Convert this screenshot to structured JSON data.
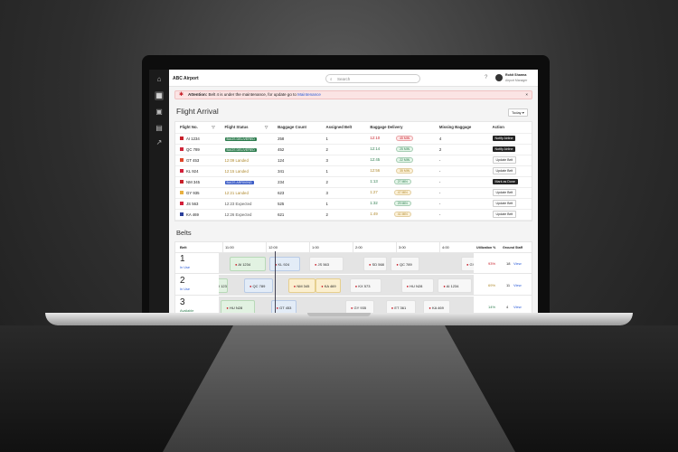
{
  "app": {
    "title": "ABC Airport",
    "search_placeholder": "Search",
    "user_name": "Rohit Sharma",
    "user_role": "Airport Manager"
  },
  "alert": {
    "label": "Attention:",
    "text": "Belt 4 is under the maintenance, for update go to",
    "link": "Maintenance",
    "close": "×"
  },
  "flight_arrival": {
    "title": "Flight Arrival",
    "filter": "Today ▾",
    "columns": [
      "Flight No.",
      "Flight Status",
      "Baggage Count",
      "Assigned Belt",
      "Baggage Delivery",
      "Missing Baggage",
      "Action"
    ],
    "rows": [
      {
        "flight": "AI 1234",
        "logo_color": "#c8202a",
        "status": "BAGS DELIVERED",
        "status_type": "delivered",
        "count": "258",
        "belt": "1",
        "delivery": "12:10",
        "delivery_color": "#c8202a",
        "eta": "45 MIN",
        "eta_type": "red",
        "missing": "4",
        "action": "Notify Airline",
        "action_style": "dark"
      },
      {
        "flight": "QC 789",
        "logo_color": "#d0263a",
        "status": "BAGS DELIVERED",
        "status_type": "delivered",
        "count": "452",
        "belt": "2",
        "delivery": "12:14",
        "delivery_color": "#2e7d4f",
        "eta": "25 MIN",
        "eta_type": "green",
        "missing": "2",
        "action": "Notify Airline",
        "action_style": "dark"
      },
      {
        "flight": "GT 453",
        "logo_color": "#e0452a",
        "status": "12:09 Landed",
        "status_type": "landed",
        "count": "124",
        "belt": "3",
        "delivery": "12:45",
        "delivery_color": "#2e7d4f",
        "eta": "22 MIN",
        "eta_type": "green",
        "missing": "-",
        "action": "Update Belt",
        "action_style": "light"
      },
      {
        "flight": "KL 924",
        "logo_color": "#d3203a",
        "status": "12:15 Landed",
        "status_type": "landed",
        "count": "341",
        "belt": "1",
        "delivery": "12:56",
        "delivery_color": "#b08a2e",
        "eta": "35 MIN",
        "eta_type": "yellow",
        "missing": "-",
        "action": "Update Belt",
        "action_style": "light"
      },
      {
        "flight": "NM 345",
        "logo_color": "#c8202a",
        "status": "BAGS ARRIVING",
        "status_type": "arriving",
        "count": "234",
        "belt": "2",
        "delivery": "1:13",
        "delivery_color": "#2e7d4f",
        "eta": "27 MIN",
        "eta_type": "green",
        "missing": "-",
        "action": "Mark as Done",
        "action_style": "dark"
      },
      {
        "flight": "GY 935",
        "logo_color": "#e8b040",
        "status": "12:21 Landed",
        "status_type": "landed",
        "count": "623",
        "belt": "3",
        "delivery": "1:27",
        "delivery_color": "#b08a2e",
        "eta": "47 MIN",
        "eta_type": "yellow",
        "missing": "-",
        "action": "Update Belt",
        "action_style": "light"
      },
      {
        "flight": "JS 563",
        "logo_color": "#d3203a",
        "status": "12:23 Expected",
        "status_type": "expected",
        "count": "525",
        "belt": "1",
        "delivery": "1:32",
        "delivery_color": "#2e7d4f",
        "eta": "29 MIN",
        "eta_type": "green",
        "missing": "-",
        "action": "Update Belt",
        "action_style": "light"
      },
      {
        "flight": "KA 469",
        "logo_color": "#2a3f9a",
        "status": "12:26 Expected",
        "status_type": "expected",
        "count": "621",
        "belt": "2",
        "delivery": "1:49",
        "delivery_color": "#b08a2e",
        "eta": "41 MIN",
        "eta_type": "yellow",
        "missing": "-",
        "action": "Update Belt",
        "action_style": "light"
      }
    ]
  },
  "belts": {
    "title": "Belts",
    "col_belt": "Belt",
    "col_util": "Utilization %",
    "col_staff": "Ground Staff",
    "times": [
      "11:00",
      "12:00",
      "1:00",
      "2:00",
      "3:00",
      "4:00"
    ],
    "current_time": "12:12",
    "rows": [
      {
        "number": "1",
        "state": "In Use",
        "state_color": "#2a5bd7",
        "util": "93%",
        "util_color": "#c8202a",
        "staff": "18",
        "view": "View",
        "flights": [
          {
            "f": "AI 1234",
            "start": "11:10",
            "end": "12:00",
            "tone": "green"
          },
          {
            "f": "KL 924",
            "start": "12:05",
            "end": "12:48",
            "tone": "blue"
          },
          {
            "f": "JS 563",
            "start": "1:00",
            "end": "1:48",
            "tone": "gray"
          },
          {
            "f": "SD 568",
            "start": "2:15",
            "end": "2:48",
            "tone": "gray"
          },
          {
            "f": "QC 789",
            "start": "2:53",
            "end": "3:33",
            "tone": "gray"
          },
          {
            "f": "GY 935",
            "start": "4:30",
            "end": "5:00",
            "tone": "gray"
          }
        ]
      },
      {
        "number": "2",
        "state": "In Use",
        "state_color": "#2a5bd7",
        "util": "69%",
        "util_color": "#b08a2e",
        "staff": "11",
        "view": "View",
        "flights": [
          {
            "f": "AI 1234",
            "start": "10:40",
            "end": "11:07",
            "tone": "green"
          },
          {
            "f": "QC 789",
            "start": "11:30",
            "end": "12:10",
            "tone": "blue"
          },
          {
            "f": "NM 345",
            "start": "12:31",
            "end": "13:09",
            "tone": "yellow"
          },
          {
            "f": "KA 469",
            "start": "1:09",
            "end": "1:44",
            "tone": "yellow"
          },
          {
            "f": "KX 573",
            "start": "1:56",
            "end": "2:40",
            "tone": "gray"
          },
          {
            "f": "HU N28",
            "start": "3:07",
            "end": "3:52",
            "tone": "gray"
          },
          {
            "f": "AI 1234",
            "start": "3:58",
            "end": "4:45",
            "tone": "gray"
          }
        ]
      },
      {
        "number": "3",
        "state": "Available",
        "state_color": "#2e7d4f",
        "util": "14%",
        "util_color": "#2e7d4f",
        "staff": "4",
        "view": "View",
        "flights": [
          {
            "f": "HU N28",
            "start": "10:58",
            "end": "11:45",
            "tone": "green"
          },
          {
            "f": "GT 453",
            "start": "12:07",
            "end": "12:42",
            "tone": "blue"
          },
          {
            "f": "GY 935",
            "start": "1:50",
            "end": "2:30",
            "tone": "gray"
          },
          {
            "f": "ET 361",
            "start": "2:46",
            "end": "3:28",
            "tone": "gray"
          },
          {
            "f": "KA 469",
            "start": "3:38",
            "end": "4:15",
            "tone": "gray"
          }
        ]
      }
    ]
  },
  "colors": {
    "accent": "#c8202a",
    "delivered": "#2e7d4f",
    "arriving": "#3a5bc7"
  }
}
